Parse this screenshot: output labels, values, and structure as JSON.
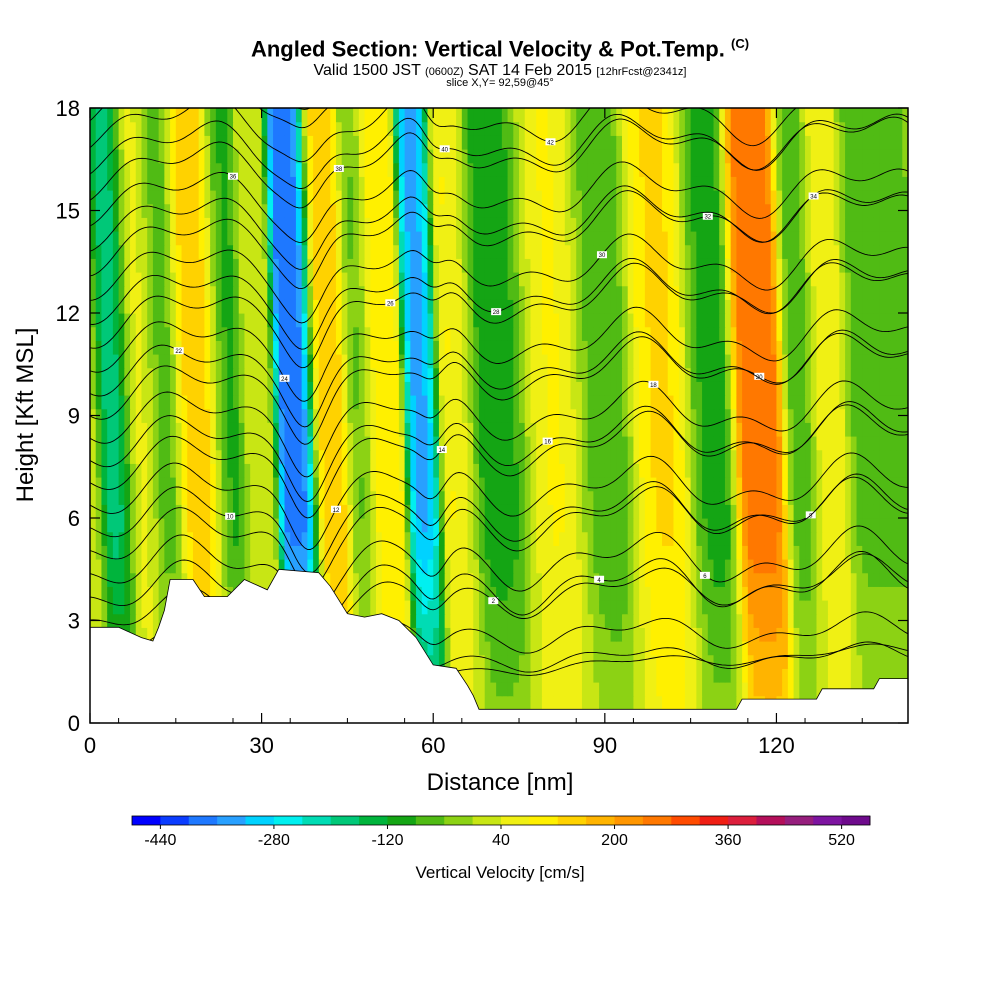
{
  "header": {
    "title": "Angled Section: Vertical Velocity & Pot.Temp.",
    "title_suffix": "(C)",
    "valid_main": "Valid 1500 JST",
    "valid_utc": "(0600Z)",
    "valid_date": "SAT 14 Feb 2015",
    "forecast": "[12hrFcst@2341z]",
    "slice": "slice X,Y= 92,59@45°"
  },
  "chart_data": {
    "type": "heatmap",
    "title": "Angled Section: Vertical Velocity & Pot.Temp.",
    "xlabel": "Distance [nm]",
    "ylabel": "Height [Kft MSL]",
    "xlim": [
      0,
      143
    ],
    "ylim": [
      0,
      18
    ],
    "x_ticks": [
      0,
      30,
      60,
      90,
      120
    ],
    "y_ticks": [
      0,
      3,
      6,
      9,
      12,
      15,
      18
    ],
    "velocity_bands": [
      {
        "x": 1,
        "w": 2.5,
        "v": 40
      },
      {
        "x": 6,
        "w": 2.5,
        "v": -200
      },
      {
        "x": 11,
        "w": 3,
        "v": 60
      },
      {
        "x": 15,
        "w": 2.5,
        "v": -100
      },
      {
        "x": 21,
        "w": 4,
        "v": 160
      },
      {
        "x": 26,
        "w": 2.5,
        "v": -130
      },
      {
        "x": 31,
        "w": 2.5,
        "v": 40
      },
      {
        "x": 38,
        "w": 2.5,
        "v": -400
      },
      {
        "x": 44,
        "w": 3,
        "v": 160
      },
      {
        "x": 49,
        "w": 2.2,
        "v": -80
      },
      {
        "x": 53,
        "w": 3,
        "v": 120
      },
      {
        "x": 60,
        "w": 2.2,
        "v": -340
      },
      {
        "x": 66,
        "w": 3,
        "v": 100
      },
      {
        "x": 73,
        "w": 5,
        "v": -120
      },
      {
        "x": 83,
        "w": 5,
        "v": 90
      },
      {
        "x": 92,
        "w": 4.5,
        "v": -90
      },
      {
        "x": 102,
        "w": 5,
        "v": 130
      },
      {
        "x": 110,
        "w": 3.5,
        "v": -120
      },
      {
        "x": 119,
        "w": 3.5,
        "v": 280
      },
      {
        "x": 126,
        "w": 2.5,
        "v": -80
      },
      {
        "x": 131,
        "w": 3,
        "v": 70
      },
      {
        "x": 137,
        "w": 2.5,
        "v": -60
      }
    ],
    "terrain": [
      [
        0,
        2.8
      ],
      [
        5,
        2.8
      ],
      [
        9,
        2.5
      ],
      [
        11,
        2.4
      ],
      [
        12,
        2.8
      ],
      [
        13,
        3.3
      ],
      [
        14,
        4.2
      ],
      [
        18,
        4.2
      ],
      [
        20,
        3.7
      ],
      [
        24,
        3.7
      ],
      [
        27,
        4.2
      ],
      [
        31,
        3.9
      ],
      [
        33,
        4.5
      ],
      [
        40,
        4.4
      ],
      [
        42,
        4.0
      ],
      [
        45,
        3.2
      ],
      [
        48,
        3.1
      ],
      [
        51,
        3.2
      ],
      [
        54,
        3.0
      ],
      [
        57,
        2.5
      ],
      [
        60,
        1.7
      ],
      [
        64,
        1.6
      ],
      [
        66,
        1.1
      ],
      [
        67,
        0.8
      ],
      [
        68,
        0.4
      ],
      [
        113,
        0.4
      ],
      [
        114,
        0.7
      ],
      [
        127,
        0.7
      ],
      [
        128,
        1.0
      ],
      [
        137,
        1.0
      ],
      [
        138,
        1.3
      ],
      [
        143,
        1.3
      ]
    ],
    "theta_contour_labels": [
      "-4",
      "-2",
      "0",
      "2",
      "4",
      "6",
      "8",
      "10",
      "12",
      "14",
      "16",
      "18",
      "20",
      "22",
      "24",
      "26",
      "28",
      "30",
      "32",
      "34",
      "36",
      "38",
      "40",
      "42",
      "44",
      "46"
    ]
  },
  "colorbar": {
    "label": "Vertical Velocity [cm/s]",
    "min": -480,
    "max": 560,
    "tick_values": [
      -440,
      -280,
      -120,
      40,
      200,
      360,
      520
    ],
    "tick_labels": [
      "-440",
      "-280",
      "-120",
      "40",
      "200",
      "360",
      "520"
    ],
    "colors": [
      "#0000ff",
      "#0a3cff",
      "#1e78ff",
      "#28a0ff",
      "#00d2ff",
      "#00f0f0",
      "#00dcb4",
      "#00c878",
      "#00b43c",
      "#14a514",
      "#50bb14",
      "#8cd214",
      "#c8e614",
      "#f0f014",
      "#fff000",
      "#ffd200",
      "#ffb400",
      "#ff9600",
      "#ff7800",
      "#ff4b00",
      "#f01e14",
      "#dc1e3c",
      "#b40f5a",
      "#961e7d",
      "#7d14a0",
      "#6e0a8c"
    ]
  }
}
